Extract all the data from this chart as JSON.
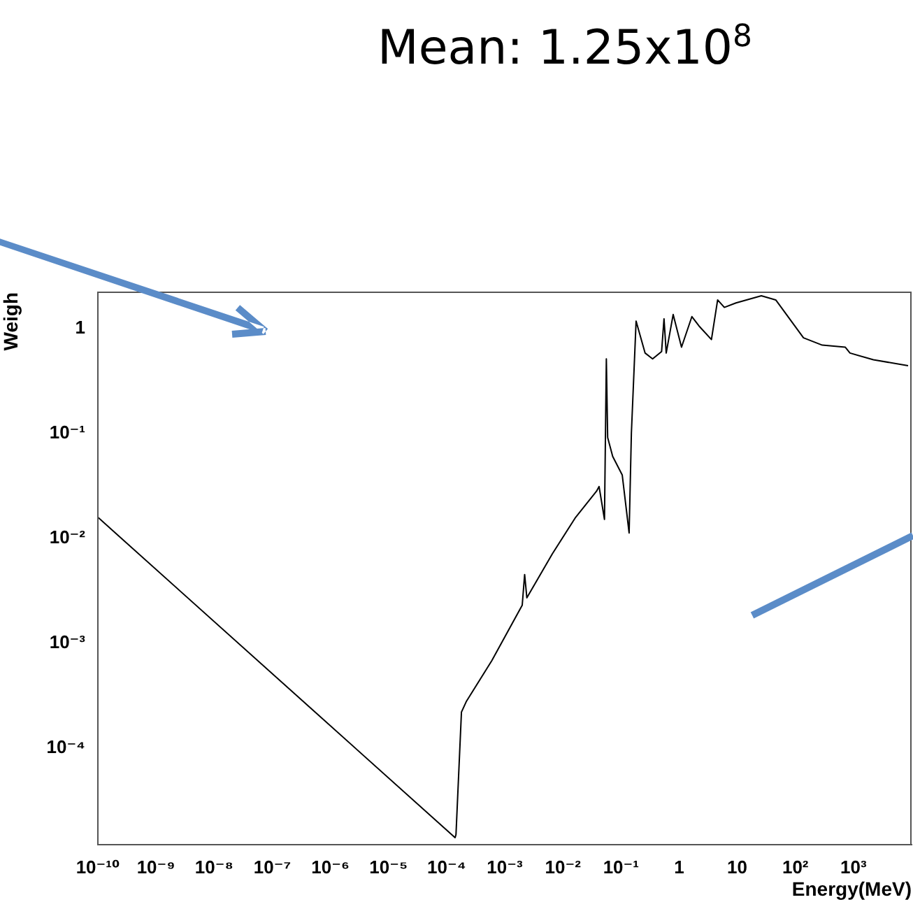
{
  "chart_data": {
    "type": "line",
    "xlabel": "Energy(MeV)",
    "ylabel": "Weigh",
    "annotations": [
      "Mean: 1.25x10$^{8}$"
    ],
    "x": [
      1e-10,
      0.00014,
      0.000145,
      0.00018,
      0.00022,
      0.0006,
      0.002,
      0.0022,
      0.0024,
      0.0066,
      0.0166,
      0.038,
      0.042,
      0.052,
      0.056,
      0.059,
      0.072,
      0.105,
      0.138,
      0.151,
      0.182,
      0.26,
      0.35,
      0.5,
      0.55,
      0.6,
      0.79,
      1.1,
      1.66,
      2.2,
      3.6,
      4.6,
      6,
      9.5,
      26,
      46,
      138,
      290,
      720,
      870,
      2200,
      8700
    ],
    "series": [
      {
        "color": "#000000",
        "values": [
          0.0158,
          1.4e-05,
          1.5e-05,
          0.00022,
          0.00028,
          0.00068,
          0.0023,
          0.0045,
          0.0027,
          0.0071,
          0.0158,
          0.028,
          0.031,
          0.0151,
          0.51,
          0.091,
          0.06,
          0.04,
          0.0112,
          0.1,
          1.17,
          0.58,
          0.51,
          0.6,
          1.23,
          0.58,
          1.35,
          0.66,
          1.29,
          1.05,
          0.78,
          1.86,
          1.58,
          1.74,
          2.04,
          1.86,
          0.81,
          0.69,
          0.66,
          0.58,
          0.5,
          0.44
        ]
      }
    ],
    "xlim": [
      1e-10,
      10000
    ],
    "ylim": [
      1.2e-05,
      2.2
    ],
    "xticks": [
      {
        "value": 1e-10,
        "label": "10⁻¹⁰"
      },
      {
        "value": 1e-09,
        "label": "10⁻⁹"
      },
      {
        "value": 1e-08,
        "label": "10⁻⁸"
      },
      {
        "value": 1e-07,
        "label": "10⁻⁷"
      },
      {
        "value": 1e-06,
        "label": "10⁻⁶"
      },
      {
        "value": 1e-05,
        "label": "10⁻⁵"
      },
      {
        "value": 0.0001,
        "label": "10⁻⁴"
      },
      {
        "value": 0.001,
        "label": "10⁻³"
      },
      {
        "value": 0.01,
        "label": "10⁻²"
      },
      {
        "value": 0.1,
        "label": "10⁻¹"
      },
      1,
      {
        "value": 10,
        "label": "10"
      },
      {
        "value": 100,
        "label": "10²"
      },
      {
        "value": 1000,
        "label": "10³"
      }
    ],
    "yticks": [
      {
        "value": 0.0001,
        "label": "10⁻⁴"
      },
      {
        "value": 0.001,
        "label": "10⁻³"
      },
      {
        "value": 0.01,
        "label": "10⁻²"
      },
      {
        "value": 0.1,
        "label": "10⁻¹"
      },
      1
    ],
    "log": "xy",
    "marker": "none",
    "line_style": "solid"
  }
}
